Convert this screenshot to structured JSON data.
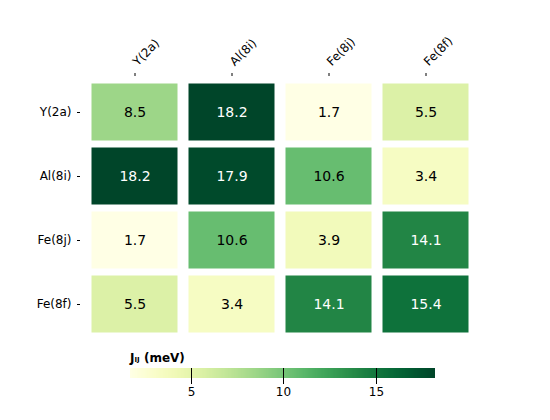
{
  "chart_data": {
    "type": "heatmap",
    "categories": [
      "Y(2a)",
      "Al(8i)",
      "Fe(8j)",
      "Fe(8f)"
    ],
    "values": [
      [
        8.5,
        18.2,
        1.7,
        5.5
      ],
      [
        18.2,
        17.9,
        10.6,
        3.4
      ],
      [
        1.7,
        10.6,
        3.9,
        14.1
      ],
      [
        5.5,
        3.4,
        14.1,
        15.4
      ]
    ],
    "color": "YlGn",
    "colorbar_label": "Jᵢⱼ (meV)",
    "colorbar_range": [
      1.7,
      18.2
    ],
    "colorbar_ticks": [
      5,
      10,
      15
    ],
    "data_labels": true
  }
}
